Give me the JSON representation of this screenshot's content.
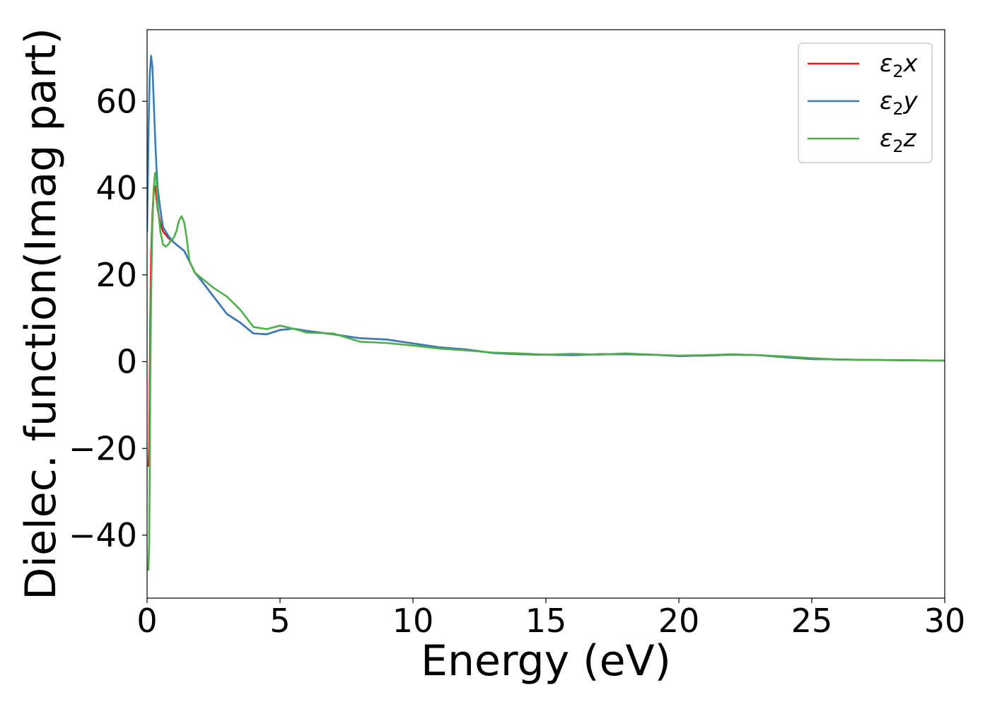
{
  "chart_data": {
    "type": "line",
    "xlabel": "Energy (eV)",
    "ylabel": "Dielec. function(Imag part)",
    "xlim": [
      0,
      30
    ],
    "ylim": [
      -54.5,
      76.5
    ],
    "xticks": [
      0,
      5,
      10,
      15,
      20,
      25,
      30
    ],
    "yticks": [
      -40,
      -20,
      0,
      20,
      40,
      60
    ],
    "xtick_labels": [
      "0",
      "5",
      "10",
      "15",
      "20",
      "25",
      "30"
    ],
    "ytick_labels": [
      "−40",
      "−20",
      "0",
      "20",
      "40",
      "60"
    ],
    "grid": false,
    "legend": {
      "position": "top-right",
      "frame": true
    },
    "series": [
      {
        "name": "ε₂x",
        "legend_main": "ε",
        "legend_sub": "2",
        "legend_tail": "x",
        "color": "#e41a1c",
        "x": [
          0.05,
          0.08,
          0.1,
          0.12,
          0.15,
          0.2,
          0.25,
          0.3,
          0.35,
          0.4,
          0.5,
          0.6,
          0.8,
          1.0,
          1.2,
          1.4,
          1.6,
          1.8,
          2.0,
          2.5,
          3.0,
          3.5,
          4.0,
          4.5,
          5.0,
          5.5,
          6.0,
          7.0,
          8.0,
          9.0,
          10.0,
          11.0,
          12.0,
          13.0,
          14.0,
          15.0,
          16.0,
          17.0,
          18.0,
          19.0,
          20.0,
          21.0,
          22.0,
          23.0,
          24.0,
          25.0,
          26.0,
          27.0,
          28.0,
          29.0,
          30.0
        ],
        "y": [
          -24,
          -20,
          -5,
          10,
          24,
          34,
          39,
          40.5,
          38,
          35,
          32,
          30,
          28.5,
          27.5,
          26.5,
          25.5,
          23,
          20.5,
          19,
          15,
          11,
          9,
          6.5,
          6.3,
          7.3,
          7.6,
          7.1,
          6.3,
          5.4,
          5.1,
          4.2,
          3.3,
          2.8,
          2.0,
          1.7,
          1.6,
          1.5,
          1.7,
          1.7,
          1.6,
          1.3,
          1.4,
          1.6,
          1.5,
          1.0,
          0.6,
          0.5,
          0.4,
          0.35,
          0.3,
          0.25
        ]
      },
      {
        "name": "ε₂y",
        "legend_main": "ε",
        "legend_sub": "2",
        "legend_tail": "y",
        "color": "#377eb8",
        "x": [
          0.0,
          0.03,
          0.06,
          0.1,
          0.15,
          0.2,
          0.25,
          0.3,
          0.35,
          0.4,
          0.5,
          0.6,
          0.8,
          1.0,
          1.2,
          1.4,
          1.6,
          1.8,
          2.0,
          2.5,
          3.0,
          3.5,
          4.0,
          4.5,
          5.0,
          5.5,
          6.0,
          7.0,
          8.0,
          9.0,
          10.0,
          11.0,
          12.0,
          13.0,
          14.0,
          15.0,
          16.0,
          17.0,
          18.0,
          19.0,
          20.0,
          21.0,
          22.0,
          23.0,
          24.0,
          25.0,
          26.0,
          27.0,
          28.0,
          29.0,
          30.0
        ],
        "y": [
          30,
          42,
          55,
          66,
          70.5,
          68,
          60,
          52,
          45,
          40,
          35,
          31,
          29,
          27.5,
          26.5,
          25.5,
          23,
          20.5,
          19,
          15,
          11,
          9,
          6.5,
          6.3,
          7.3,
          7.6,
          7.1,
          6.3,
          5.4,
          5.1,
          4.2,
          3.3,
          2.8,
          2.0,
          1.7,
          1.6,
          1.5,
          1.7,
          1.7,
          1.6,
          1.3,
          1.4,
          1.6,
          1.5,
          1.0,
          0.6,
          0.5,
          0.4,
          0.35,
          0.3,
          0.25
        ]
      },
      {
        "name": "ε₂z",
        "legend_main": "ε",
        "legend_sub": "2",
        "legend_tail": "z",
        "color": "#4daf4a",
        "x": [
          0.05,
          0.08,
          0.1,
          0.12,
          0.15,
          0.2,
          0.25,
          0.3,
          0.35,
          0.4,
          0.5,
          0.6,
          0.7,
          0.8,
          0.9,
          1.0,
          1.1,
          1.2,
          1.3,
          1.4,
          1.5,
          1.6,
          1.8,
          2.0,
          2.5,
          3.0,
          3.5,
          4.0,
          4.5,
          5.0,
          5.5,
          6.0,
          7.0,
          8.0,
          9.0,
          10.0,
          11.0,
          12.0,
          13.0,
          14.0,
          15.0,
          16.0,
          17.0,
          18.0,
          19.0,
          20.0,
          21.0,
          22.0,
          23.0,
          24.0,
          25.0,
          26.0,
          27.0,
          28.0,
          29.0,
          30.0
        ],
        "y": [
          -48,
          -42,
          -25,
          -5,
          15,
          32,
          40,
          43.5,
          42,
          36,
          30,
          27,
          26.5,
          27,
          28,
          28.5,
          30,
          32.5,
          33.5,
          32,
          28,
          23,
          20.5,
          19.5,
          17,
          15,
          12,
          8,
          7.5,
          8.3,
          7.6,
          6.7,
          6.5,
          4.6,
          4.3,
          3.7,
          3.0,
          2.6,
          2.1,
          1.9,
          1.6,
          1.8,
          1.6,
          1.9,
          1.6,
          1.4,
          1.5,
          1.7,
          1.5,
          1.2,
          0.8,
          0.5,
          0.4,
          0.35,
          0.3,
          0.25
        ]
      }
    ]
  }
}
